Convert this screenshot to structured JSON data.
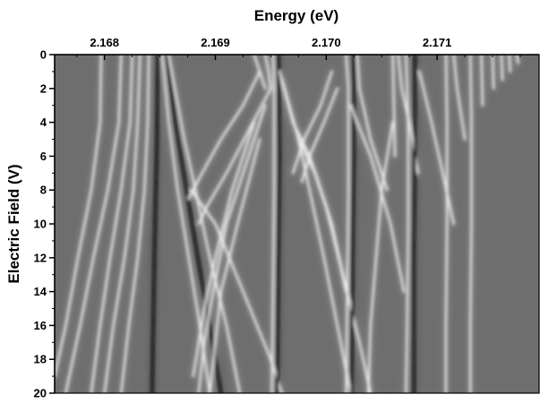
{
  "chart_data": {
    "type": "heatmap",
    "title": "",
    "xlabel": "Energy (eV)",
    "ylabel": "Electric Field (V)",
    "x_axis_position": "top",
    "y_axis_direction": "downward",
    "xlim": [
      2.16755,
      2.17192
    ],
    "ylim": [
      0,
      20
    ],
    "x_ticks": [
      2.168,
      2.169,
      2.17,
      2.171
    ],
    "x_tick_labels": [
      "2.168",
      "2.169",
      "2.170",
      "2.171"
    ],
    "y_ticks": [
      0,
      2,
      4,
      6,
      8,
      10,
      12,
      14,
      16,
      18,
      20
    ],
    "y_tick_labels": [
      "0",
      "2",
      "4",
      "6",
      "8",
      "10",
      "12",
      "14",
      "16",
      "18",
      "20"
    ],
    "colormap": "grayscale",
    "background_color": "#6e6e6e",
    "grid": false,
    "legend": "none",
    "features": [
      {
        "kind": "bright",
        "points": [
          [
            2.16797,
            0
          ],
          [
            2.16796,
            4
          ],
          [
            2.16788,
            8
          ],
          [
            2.16776,
            12
          ],
          [
            2.16765,
            16
          ],
          [
            2.16755,
            19
          ]
        ]
      },
      {
        "kind": "bright",
        "points": [
          [
            2.16815,
            0
          ],
          [
            2.16813,
            4
          ],
          [
            2.16803,
            8
          ],
          [
            2.1679,
            12
          ],
          [
            2.16778,
            16
          ],
          [
            2.16765,
            20
          ]
        ]
      },
      {
        "kind": "bright",
        "points": [
          [
            2.16825,
            0
          ],
          [
            2.16823,
            4
          ],
          [
            2.16815,
            8
          ],
          [
            2.16805,
            12
          ],
          [
            2.16796,
            16
          ],
          [
            2.16788,
            20
          ]
        ]
      },
      {
        "kind": "bright",
        "points": [
          [
            2.16832,
            0
          ],
          [
            2.1683,
            4
          ],
          [
            2.16826,
            8
          ],
          [
            2.16818,
            12
          ],
          [
            2.16808,
            16
          ],
          [
            2.168,
            20
          ]
        ]
      },
      {
        "kind": "bright",
        "points": [
          [
            2.1684,
            0
          ],
          [
            2.16839,
            4
          ],
          [
            2.16836,
            8
          ],
          [
            2.1683,
            12
          ],
          [
            2.16822,
            16
          ],
          [
            2.16815,
            20
          ]
        ]
      },
      {
        "kind": "dark",
        "points": [
          [
            2.16848,
            0
          ],
          [
            2.16847,
            6
          ],
          [
            2.16845,
            12
          ],
          [
            2.16843,
            20
          ]
        ]
      },
      {
        "kind": "bright",
        "points": [
          [
            2.16852,
            0
          ],
          [
            2.16858,
            4
          ],
          [
            2.16866,
            8
          ],
          [
            2.16876,
            12
          ],
          [
            2.16886,
            16
          ],
          [
            2.16895,
            20
          ]
        ]
      },
      {
        "kind": "dark",
        "points": [
          [
            2.16856,
            0
          ],
          [
            2.16864,
            4
          ],
          [
            2.16874,
            8
          ],
          [
            2.16884,
            12
          ],
          [
            2.16895,
            16
          ],
          [
            2.16905,
            20
          ]
        ]
      },
      {
        "kind": "bright",
        "points": [
          [
            2.16858,
            0
          ],
          [
            2.16872,
            5
          ],
          [
            2.16882,
            8
          ],
          [
            2.16895,
            12
          ],
          [
            2.1691,
            16
          ],
          [
            2.16922,
            20
          ]
        ]
      },
      {
        "kind": "bright",
        "points": [
          [
            2.1694,
            1
          ],
          [
            2.16925,
            3
          ],
          [
            2.16905,
            5
          ],
          [
            2.16888,
            7
          ],
          [
            2.16876,
            8.5
          ]
        ]
      },
      {
        "kind": "bright",
        "points": [
          [
            2.1695,
            2
          ],
          [
            2.1693,
            4.5
          ],
          [
            2.1691,
            7
          ],
          [
            2.16892,
            9
          ],
          [
            2.16885,
            10
          ]
        ]
      },
      {
        "kind": "bright",
        "points": [
          [
            2.16878,
            8
          ],
          [
            2.169,
            10
          ],
          [
            2.16925,
            14
          ],
          [
            2.1695,
            18
          ],
          [
            2.1696,
            20
          ]
        ]
      },
      {
        "kind": "bright",
        "points": [
          [
            2.16935,
            0
          ],
          [
            2.1694,
            1
          ],
          [
            2.16945,
            2
          ]
        ]
      },
      {
        "kind": "bright",
        "points": [
          [
            2.16945,
            0
          ],
          [
            2.16948,
            1
          ],
          [
            2.1695,
            2
          ]
        ]
      },
      {
        "kind": "bright",
        "points": [
          [
            2.16952,
            0
          ],
          [
            2.16953,
            2
          ],
          [
            2.16953,
            8
          ],
          [
            2.16952,
            14
          ],
          [
            2.16951,
            20
          ]
        ]
      },
      {
        "kind": "dark",
        "points": [
          [
            2.16957,
            0
          ],
          [
            2.16958,
            6
          ],
          [
            2.16957,
            12
          ],
          [
            2.16956,
            20
          ]
        ]
      },
      {
        "kind": "bright",
        "points": [
          [
            2.16958,
            1
          ],
          [
            2.16975,
            5
          ],
          [
            2.16985,
            8
          ],
          [
            2.16998,
            12
          ],
          [
            2.1701,
            16
          ],
          [
            2.17022,
            20
          ]
        ]
      },
      {
        "kind": "bright",
        "points": [
          [
            2.1696,
            1.5
          ],
          [
            2.1697,
            4
          ],
          [
            2.16985,
            6
          ],
          [
            2.17,
            9
          ],
          [
            2.17015,
            13
          ],
          [
            2.1703,
            17
          ],
          [
            2.1704,
            20
          ]
        ]
      },
      {
        "kind": "bright",
        "points": [
          [
            2.16945,
            3
          ],
          [
            2.16925,
            7
          ],
          [
            2.1691,
            10
          ],
          [
            2.16898,
            14
          ],
          [
            2.1689,
            17
          ],
          [
            2.16885,
            20
          ]
        ]
      },
      {
        "kind": "bright",
        "points": [
          [
            2.16935,
            4
          ],
          [
            2.16915,
            8
          ],
          [
            2.169,
            12
          ],
          [
            2.1689,
            15
          ],
          [
            2.1688,
            19
          ]
        ]
      },
      {
        "kind": "bright",
        "points": [
          [
            2.1694,
            5
          ],
          [
            2.1692,
            10
          ],
          [
            2.16905,
            14
          ],
          [
            2.16895,
            20
          ]
        ]
      },
      {
        "kind": "bright",
        "points": [
          [
            2.17005,
            1
          ],
          [
            2.16995,
            3
          ],
          [
            2.1698,
            5
          ],
          [
            2.1697,
            7
          ]
        ]
      },
      {
        "kind": "bright",
        "points": [
          [
            2.1701,
            2
          ],
          [
            2.16998,
            4
          ],
          [
            2.16985,
            6
          ],
          [
            2.16978,
            7.5
          ]
        ]
      },
      {
        "kind": "bright",
        "points": [
          [
            2.17018,
            0
          ],
          [
            2.1702,
            2
          ],
          [
            2.1702,
            8
          ],
          [
            2.17019,
            14
          ],
          [
            2.17018,
            20
          ]
        ]
      },
      {
        "kind": "dark",
        "points": [
          [
            2.17025,
            0
          ],
          [
            2.17025,
            6
          ],
          [
            2.17024,
            12
          ],
          [
            2.17023,
            20
          ]
        ]
      },
      {
        "kind": "bright",
        "points": [
          [
            2.17028,
            0
          ],
          [
            2.1703,
            2
          ],
          [
            2.1704,
            5
          ],
          [
            2.17055,
            8
          ]
        ]
      },
      {
        "kind": "bright",
        "points": [
          [
            2.17022,
            3
          ],
          [
            2.1704,
            6
          ],
          [
            2.17058,
            10
          ],
          [
            2.1707,
            14
          ]
        ]
      },
      {
        "kind": "bright",
        "points": [
          [
            2.16975,
            5
          ],
          [
            2.1699,
            7
          ],
          [
            2.17005,
            10
          ],
          [
            2.17018,
            14
          ]
        ]
      },
      {
        "kind": "bright",
        "points": [
          [
            2.1706,
            0
          ],
          [
            2.17061,
            3
          ],
          [
            2.17062,
            6
          ]
        ]
      },
      {
        "kind": "bright",
        "points": [
          [
            2.17065,
            0
          ],
          [
            2.17068,
            2
          ],
          [
            2.17075,
            4
          ],
          [
            2.17083,
            7
          ]
        ]
      },
      {
        "kind": "bright",
        "points": [
          [
            2.1706,
            4
          ],
          [
            2.1705,
            8
          ],
          [
            2.17045,
            12
          ],
          [
            2.1704,
            16
          ],
          [
            2.17038,
            20
          ]
        ]
      },
      {
        "kind": "bright",
        "points": [
          [
            2.17072,
            0
          ],
          [
            2.17074,
            4
          ],
          [
            2.17074,
            10
          ],
          [
            2.17073,
            16
          ],
          [
            2.17072,
            20
          ]
        ]
      },
      {
        "kind": "dark",
        "points": [
          [
            2.1708,
            0
          ],
          [
            2.1708,
            6
          ],
          [
            2.17079,
            12
          ],
          [
            2.17079,
            20
          ]
        ]
      },
      {
        "kind": "bright",
        "points": [
          [
            2.17084,
            1
          ],
          [
            2.17095,
            4
          ],
          [
            2.17105,
            7
          ],
          [
            2.17115,
            10
          ]
        ]
      },
      {
        "kind": "bright",
        "points": [
          [
            2.17108,
            0
          ],
          [
            2.17109,
            4
          ],
          [
            2.17109,
            10
          ],
          [
            2.17108,
            16
          ],
          [
            2.17108,
            20
          ]
        ]
      },
      {
        "kind": "bright",
        "points": [
          [
            2.17115,
            0
          ],
          [
            2.17118,
            2
          ],
          [
            2.17125,
            5
          ]
        ]
      },
      {
        "kind": "bright",
        "points": [
          [
            2.1713,
            0
          ],
          [
            2.17131,
            4
          ],
          [
            2.17131,
            10
          ],
          [
            2.1713,
            16
          ],
          [
            2.1713,
            20
          ]
        ]
      },
      {
        "kind": "bright",
        "points": [
          [
            2.1714,
            0
          ],
          [
            2.17141,
            3
          ]
        ]
      },
      {
        "kind": "bright",
        "points": [
          [
            2.1715,
            0
          ],
          [
            2.17151,
            2
          ]
        ]
      },
      {
        "kind": "bright",
        "points": [
          [
            2.17158,
            0
          ],
          [
            2.17159,
            1.5
          ]
        ]
      },
      {
        "kind": "bright",
        "points": [
          [
            2.17165,
            0
          ],
          [
            2.17166,
            1
          ]
        ]
      },
      {
        "kind": "bright",
        "points": [
          [
            2.17172,
            0
          ],
          [
            2.17173,
            0.5
          ]
        ]
      }
    ]
  }
}
